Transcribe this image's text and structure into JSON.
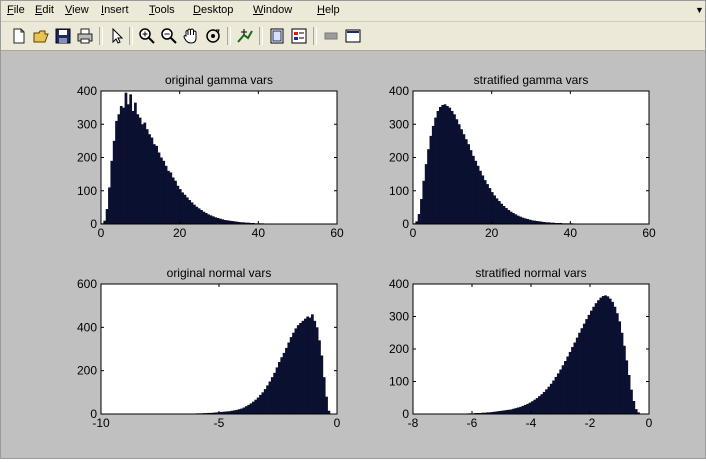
{
  "menu": {
    "items": [
      {
        "key": "F",
        "rest": "ile"
      },
      {
        "key": "E",
        "rest": "dit"
      },
      {
        "key": "V",
        "rest": "iew"
      },
      {
        "key": "I",
        "rest": "nsert"
      },
      {
        "key": "T",
        "rest": "ools"
      },
      {
        "key": "D",
        "rest": "esktop"
      },
      {
        "key": "W",
        "rest": "indow"
      },
      {
        "key": "H",
        "rest": "elp"
      }
    ]
  },
  "toolbar": {
    "icons": [
      "new-figure-icon",
      "open-file-icon",
      "save-icon",
      "print-icon",
      "pointer-icon",
      "zoom-in-icon",
      "zoom-out-icon",
      "pan-hand-icon",
      "rotate-3d-icon",
      "data-cursor-icon",
      "colorbar-icon",
      "legend-icon",
      "hide-plot-tools-icon",
      "show-plot-tools-icon"
    ]
  },
  "colors": {
    "bar": "#0b1030",
    "axes_bg": "#ffffff",
    "figure_bg": "#c0c0c0"
  },
  "chart_data": [
    {
      "type": "bar",
      "title": "original gamma vars",
      "xlim": [
        0,
        60
      ],
      "ylim": [
        0,
        400
      ],
      "xticks": [
        0,
        20,
        40,
        60
      ],
      "yticks": [
        0,
        100,
        200,
        300,
        400
      ],
      "bin_width": 0.6,
      "x": [
        0.3,
        0.9,
        1.5,
        2.1,
        2.7,
        3.3,
        3.9,
        4.5,
        5.1,
        5.7,
        6.3,
        6.9,
        7.5,
        8.1,
        8.7,
        9.3,
        9.9,
        10.5,
        11.1,
        11.7,
        12.3,
        12.9,
        13.5,
        14.1,
        14.7,
        15.3,
        15.9,
        16.5,
        17.1,
        17.7,
        18.3,
        18.9,
        19.5,
        20.1,
        20.7,
        21.3,
        21.9,
        22.5,
        23.1,
        23.7,
        24.3,
        24.9,
        25.5,
        26.1,
        26.7,
        27.3,
        27.9,
        28.5,
        29.1,
        29.7,
        30.3,
        30.9,
        31.5,
        32.1,
        32.7,
        33.3,
        33.9,
        34.5,
        35.1,
        35.7,
        36.3,
        36.9,
        37.5,
        38.1,
        38.7,
        39.3,
        39.9,
        40.5,
        41.1,
        41.7,
        42.3,
        42.9,
        43.5,
        44.1,
        44.7,
        45.3,
        45.9
      ],
      "values": [
        2,
        10,
        45,
        110,
        190,
        250,
        310,
        330,
        355,
        350,
        395,
        360,
        390,
        340,
        365,
        330,
        320,
        300,
        305,
        285,
        270,
        260,
        240,
        235,
        215,
        200,
        190,
        175,
        160,
        155,
        140,
        130,
        115,
        105,
        95,
        88,
        80,
        72,
        65,
        58,
        52,
        47,
        42,
        37,
        33,
        29,
        26,
        23,
        20,
        18,
        16,
        14,
        12,
        11,
        10,
        9,
        8,
        7,
        6,
        5,
        5,
        4,
        4,
        3,
        3,
        2,
        2,
        2,
        2,
        1,
        1,
        1,
        1,
        1,
        1,
        1,
        1
      ]
    },
    {
      "type": "bar",
      "title": "stratified gamma vars",
      "xlim": [
        0,
        60
      ],
      "ylim": [
        0,
        400
      ],
      "xticks": [
        0,
        20,
        40,
        60
      ],
      "yticks": [
        0,
        100,
        200,
        300,
        400
      ],
      "bin_width": 0.6,
      "x": [
        0.3,
        0.9,
        1.5,
        2.1,
        2.7,
        3.3,
        3.9,
        4.5,
        5.1,
        5.7,
        6.3,
        6.9,
        7.5,
        8.1,
        8.7,
        9.3,
        9.9,
        10.5,
        11.1,
        11.7,
        12.3,
        12.9,
        13.5,
        14.1,
        14.7,
        15.3,
        15.9,
        16.5,
        17.1,
        17.7,
        18.3,
        18.9,
        19.5,
        20.1,
        20.7,
        21.3,
        21.9,
        22.5,
        23.1,
        23.7,
        24.3,
        24.9,
        25.5,
        26.1,
        26.7,
        27.3,
        27.9,
        28.5,
        29.1,
        29.7,
        30.3,
        30.9,
        31.5,
        32.1,
        32.7,
        33.3,
        33.9,
        34.5,
        35.1,
        35.7,
        36.3,
        36.9,
        37.5,
        38.1,
        38.7,
        39.3,
        39.9,
        40.5,
        41.1,
        41.7,
        42.3,
        42.9,
        43.5,
        44.1,
        44.7,
        45.3,
        45.9,
        46.5,
        47.1
      ],
      "values": [
        2,
        8,
        30,
        75,
        130,
        180,
        225,
        265,
        295,
        320,
        340,
        352,
        358,
        360,
        355,
        350,
        340,
        330,
        315,
        300,
        285,
        270,
        255,
        240,
        222,
        205,
        190,
        175,
        160,
        146,
        132,
        120,
        108,
        96,
        86,
        77,
        69,
        61,
        54,
        48,
        42,
        37,
        33,
        29,
        25,
        22,
        19,
        17,
        15,
        13,
        11,
        10,
        9,
        8,
        7,
        6,
        5,
        5,
        4,
        4,
        3,
        3,
        3,
        2,
        2,
        2,
        2,
        2,
        1,
        1,
        1,
        1,
        1,
        1,
        1,
        1,
        1,
        1,
        1
      ]
    },
    {
      "type": "bar",
      "title": "original normal vars",
      "xlim": [
        -10,
        0
      ],
      "ylim": [
        0,
        600
      ],
      "xticks": [
        -10,
        -5,
        0
      ],
      "yticks": [
        0,
        200,
        400,
        600
      ],
      "bin_width": 0.1,
      "x": [
        -6.95,
        -6.85,
        -6.75,
        -6.65,
        -6.55,
        -6.45,
        -6.35,
        -6.25,
        -6.15,
        -6.05,
        -5.95,
        -5.85,
        -5.75,
        -5.65,
        -5.55,
        -5.45,
        -5.35,
        -5.25,
        -5.15,
        -5.05,
        -4.95,
        -4.85,
        -4.75,
        -4.65,
        -4.55,
        -4.45,
        -4.35,
        -4.25,
        -4.15,
        -4.05,
        -3.95,
        -3.85,
        -3.75,
        -3.65,
        -3.55,
        -3.45,
        -3.35,
        -3.25,
        -3.15,
        -3.05,
        -2.95,
        -2.85,
        -2.75,
        -2.65,
        -2.55,
        -2.45,
        -2.35,
        -2.25,
        -2.15,
        -2.05,
        -1.95,
        -1.85,
        -1.75,
        -1.65,
        -1.55,
        -1.45,
        -1.35,
        -1.25,
        -1.15,
        -1.05,
        -0.95,
        -0.85,
        -0.75,
        -0.65,
        -0.55,
        -0.45,
        -0.35
      ],
      "values": [
        1,
        1,
        1,
        1,
        1,
        1,
        2,
        2,
        2,
        2,
        3,
        3,
        3,
        4,
        4,
        5,
        5,
        6,
        7,
        8,
        9,
        10,
        11,
        12,
        13,
        15,
        17,
        19,
        22,
        25,
        30,
        36,
        42,
        49,
        57,
        66,
        76,
        88,
        100,
        115,
        132,
        150,
        170,
        190,
        215,
        240,
        262,
        282,
        305,
        330,
        355,
        375,
        395,
        410,
        420,
        430,
        440,
        450,
        445,
        460,
        430,
        400,
        340,
        270,
        170,
        80,
        15
      ]
    },
    {
      "type": "bar",
      "title": "stratified normal vars",
      "xlim": [
        -8,
        0
      ],
      "ylim": [
        0,
        400
      ],
      "xticks": [
        -8,
        -6,
        -4,
        -2,
        0
      ],
      "yticks": [
        0,
        100,
        200,
        300,
        400
      ],
      "bin_width": 0.08,
      "x": [
        -6.36,
        -6.28,
        -6.2,
        -6.12,
        -6.04,
        -5.96,
        -5.88,
        -5.8,
        -5.72,
        -5.64,
        -5.56,
        -5.48,
        -5.4,
        -5.32,
        -5.24,
        -5.16,
        -5.08,
        -5.0,
        -4.92,
        -4.84,
        -4.76,
        -4.68,
        -4.6,
        -4.52,
        -4.44,
        -4.36,
        -4.28,
        -4.2,
        -4.12,
        -4.04,
        -3.96,
        -3.88,
        -3.8,
        -3.72,
        -3.64,
        -3.56,
        -3.48,
        -3.4,
        -3.32,
        -3.24,
        -3.16,
        -3.08,
        -3.0,
        -2.92,
        -2.84,
        -2.76,
        -2.68,
        -2.6,
        -2.52,
        -2.44,
        -2.36,
        -2.28,
        -2.2,
        -2.12,
        -2.04,
        -1.96,
        -1.88,
        -1.8,
        -1.72,
        -1.64,
        -1.56,
        -1.48,
        -1.4,
        -1.32,
        -1.24,
        -1.16,
        -1.08,
        -1.0,
        -0.92,
        -0.84,
        -0.76,
        -0.68,
        -0.6,
        -0.52,
        -0.44,
        -0.36,
        -0.28
      ],
      "values": [
        1,
        1,
        1,
        2,
        2,
        2,
        3,
        3,
        3,
        4,
        4,
        5,
        5,
        6,
        7,
        8,
        9,
        10,
        11,
        12,
        13,
        14,
        16,
        18,
        20,
        22,
        25,
        28,
        31,
        35,
        39,
        44,
        49,
        55,
        61,
        68,
        76,
        84,
        93,
        103,
        114,
        125,
        137,
        150,
        163,
        177,
        191,
        206,
        220,
        235,
        250,
        264,
        278,
        292,
        305,
        318,
        330,
        341,
        350,
        358,
        363,
        365,
        362,
        355,
        345,
        330,
        310,
        285,
        250,
        210,
        165,
        120,
        75,
        40,
        15,
        5,
        1
      ]
    }
  ]
}
